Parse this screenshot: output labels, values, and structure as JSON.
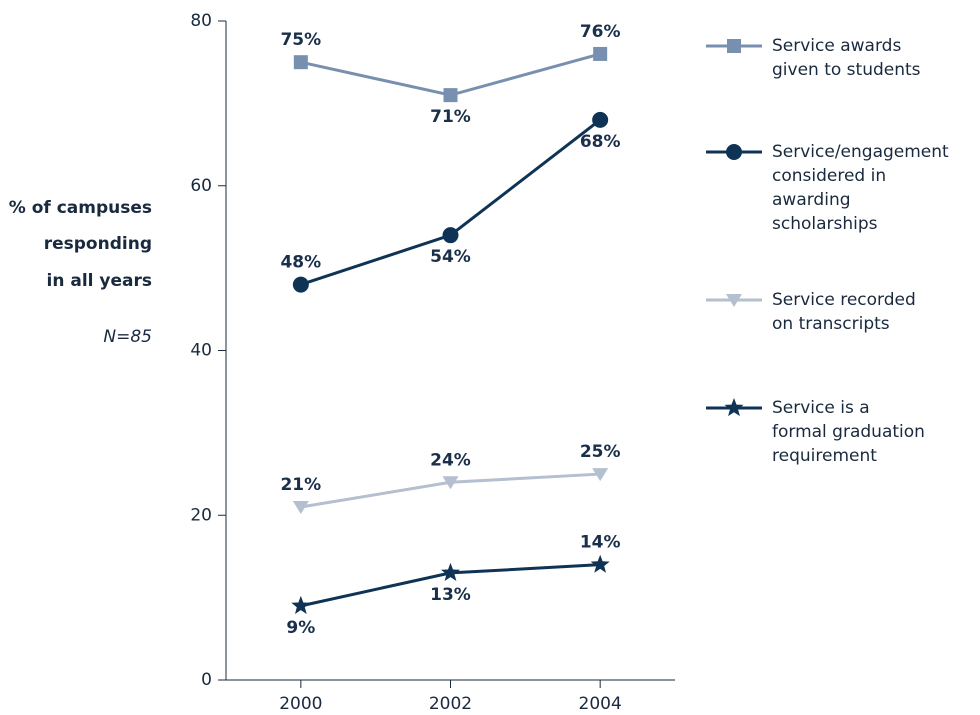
{
  "chart_data": {
    "type": "line",
    "ylabel": [
      "% of campuses",
      "responding",
      "in all years"
    ],
    "note": "N=85",
    "x": [
      2000,
      2002,
      2004
    ],
    "xlim": [
      1999,
      2005
    ],
    "xticks": [
      2000,
      2002,
      2004
    ],
    "ylim": [
      0,
      80
    ],
    "yticks": [
      0,
      20,
      40,
      60,
      80
    ],
    "legend": "right",
    "series": [
      {
        "name": "Service awards given to students",
        "color": "#7890b0",
        "marker": "square",
        "values": [
          75,
          71,
          76
        ],
        "value_labels": [
          "75%",
          "71%",
          "76%"
        ]
      },
      {
        "name": "Service/engagement considered in awarding scholarships",
        "color": "#0f3354",
        "marker": "circle",
        "values": [
          48,
          54,
          68
        ],
        "value_labels": [
          "48%",
          "54%",
          "68%"
        ]
      },
      {
        "name": "Service recorded on transcripts",
        "color": "#b4bfcf",
        "marker": "triangle-down",
        "values": [
          21,
          24,
          25
        ],
        "value_labels": [
          "21%",
          "24%",
          "25%"
        ]
      },
      {
        "name": "Service is a formal graduation requirement",
        "color": "#0f3354",
        "marker": "star",
        "values": [
          9,
          13,
          14
        ],
        "value_labels": [
          "9%",
          "13%",
          "14%"
        ]
      }
    ]
  }
}
